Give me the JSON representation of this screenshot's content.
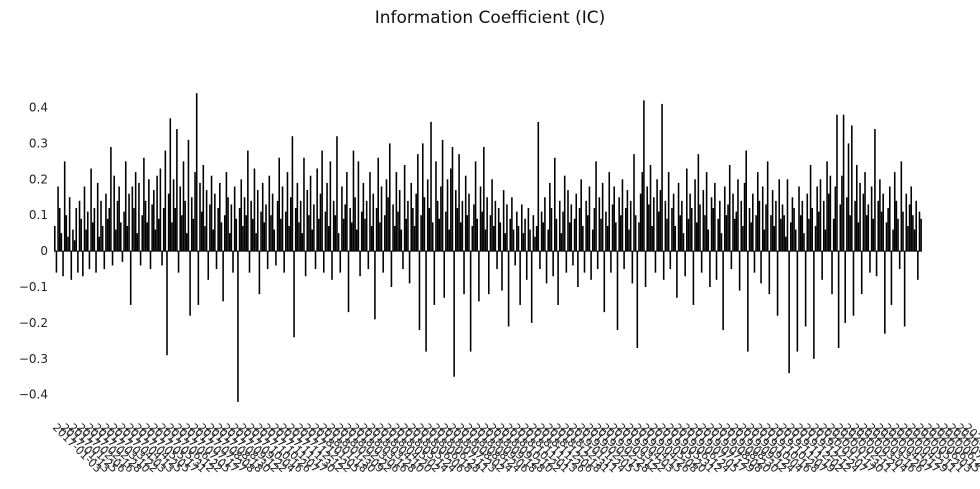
{
  "chart_data": {
    "type": "bar",
    "title": "Information Coefficient (IC)",
    "xlabel": "",
    "ylabel": "",
    "ylim": [
      -0.45,
      0.45
    ],
    "yticks": [
      0.4,
      0.3,
      0.2,
      0.1,
      0,
      -0.1,
      -0.2,
      -0.3,
      -0.4
    ],
    "ytick_labels": [
      "0.4",
      "0.3",
      "0.2",
      "0.1",
      "0",
      "−0.1",
      "−0.2",
      "−0.3",
      "−0.4"
    ],
    "bar_color": "#000000",
    "grid": false,
    "x_start": "2017-01-03",
    "x_end": "2020-07-24",
    "x_tick_labels": [
      "2017-01-03",
      "2017-01-13",
      "2017-01-25",
      "2017-02-06",
      "2017-02-16",
      "2017-02-28",
      "2017-03-10",
      "2017-03-22",
      "2017-04-03",
      "2017-04-13",
      "2017-04-25",
      "2017-05-05",
      "2017-05-17",
      "2017-05-31",
      "2017-06-12",
      "2017-06-22",
      "2017-07-05",
      "2017-07-17",
      "2017-07-27",
      "2017-08-08",
      "2017-08-18",
      "2017-08-30",
      "2017-09-12",
      "2017-09-22",
      "2017-10-04",
      "2017-10-16",
      "2017-10-26",
      "2017-11-07",
      "2017-11-17",
      "2017-11-30",
      "2017-12-12",
      "2017-12-22",
      "2018-01-05",
      "2018-01-18",
      "2018-01-30",
      "2018-02-09",
      "2018-02-22",
      "2018-03-06",
      "2018-03-16",
      "2018-03-28",
      "2018-04-10",
      "2018-04-20",
      "2018-05-02",
      "2018-05-14",
      "2018-05-24",
      "2018-06-06",
      "2018-06-18",
      "2018-06-28",
      "2018-07-11",
      "2018-07-23",
      "2018-08-02",
      "2018-08-14",
      "2018-08-24",
      "2018-09-06",
      "2018-09-18",
      "2018-09-28",
      "2018-10-10",
      "2018-10-22",
      "2018-11-01",
      "2018-11-13",
      "2018-11-26",
      "2018-12-06",
      "2018-12-18",
      "2018-12-31",
      "2019-01-11",
      "2019-01-24",
      "2019-02-05",
      "2019-02-15",
      "2019-02-28",
      "2019-03-12",
      "2019-03-22",
      "2019-04-03",
      "2019-04-15",
      "2019-04-26",
      "2019-05-08",
      "2019-05-20",
      "2019-05-31",
      "2019-06-12",
      "2019-06-24",
      "2019-07-05",
      "2019-07-17",
      "2019-07-29",
      "2019-08-08",
      "2019-08-20",
      "2019-08-30",
      "2019-09-12",
      "2019-09-24",
      "2019-10-04",
      "2019-10-16",
      "2019-10-28",
      "2019-11-07",
      "2019-11-19",
      "2019-12-02",
      "2019-12-12",
      "2019-12-24",
      "2020-01-07",
      "2020-01-17",
      "2020-01-30",
      "2020-02-11",
      "2020-02-21",
      "2020-03-04",
      "2020-03-16",
      "2020-03-26",
      "2020-04-07",
      "2020-04-17",
      "2020-04-29",
      "2020-05-11",
      "2020-05-21",
      "2020-06-03",
      "2020-06-15",
      "2020-06-25",
      "2020-07-08",
      "2020-07-20",
      "2020-07-24"
    ],
    "values": [
      0.07,
      -0.06,
      0.18,
      0.12,
      0.05,
      -0.07,
      0.25,
      0.1,
      0.04,
      0.15,
      -0.08,
      0.06,
      0.03,
      0.12,
      -0.06,
      0.14,
      0.09,
      -0.07,
      0.18,
      0.06,
      0.11,
      -0.05,
      0.23,
      0.08,
      0.12,
      -0.06,
      0.19,
      0.04,
      0.14,
      0.07,
      -0.05,
      0.16,
      0.09,
      0.12,
      0.29,
      -0.04,
      0.21,
      0.06,
      0.14,
      0.18,
      0.08,
      -0.03,
      0.11,
      0.25,
      0.07,
      0.16,
      -0.15,
      0.18,
      0.12,
      0.22,
      0.05,
      0.19,
      -0.04,
      0.1,
      0.26,
      0.14,
      0.08,
      0.2,
      -0.05,
      0.13,
      0.17,
      0.06,
      0.21,
      0.09,
      0.23,
      -0.04,
      0.12,
      0.28,
      -0.29,
      0.16,
      0.37,
      0.08,
      0.2,
      0.12,
      0.34,
      -0.06,
      0.18,
      0.1,
      0.25,
      0.14,
      0.05,
      0.31,
      -0.18,
      0.15,
      0.09,
      0.22,
      0.44,
      -0.15,
      0.19,
      0.11,
      0.24,
      0.07,
      0.17,
      -0.08,
      0.13,
      0.21,
      0.06,
      0.16,
      -0.05,
      0.12,
      0.19,
      0.08,
      -0.14,
      0.1,
      0.22,
      0.15,
      0.05,
      0.13,
      -0.06,
      0.18,
      0.09,
      -0.42,
      0.12,
      0.2,
      0.07,
      0.15,
      0.1,
      0.28,
      -0.06,
      0.14,
      0.09,
      0.23,
      0.05,
      0.17,
      -0.12,
      0.11,
      0.19,
      0.08,
      0.13,
      -0.05,
      0.21,
      0.1,
      0.16,
      0.06,
      -0.04,
      0.14,
      0.26,
      0.09,
      0.18,
      -0.06,
      0.11,
      0.22,
      0.07,
      0.15,
      0.32,
      -0.24,
      0.12,
      0.19,
      0.08,
      0.14,
      0.05,
      0.26,
      -0.07,
      0.17,
      0.1,
      0.21,
      0.06,
      0.13,
      -0.05,
      0.23,
      0.09,
      0.16,
      0.28,
      -0.06,
      0.11,
      0.19,
      0.07,
      0.25,
      -0.08,
      0.14,
      0.1,
      0.32,
      0.05,
      -0.06,
      0.18,
      0.09,
      0.13,
      0.22,
      -0.17,
      0.12,
      0.08,
      0.28,
      0.15,
      0.06,
      0.25,
      -0.07,
      0.11,
      0.19,
      0.09,
      0.14,
      -0.05,
      0.22,
      0.07,
      0.16,
      -0.19,
      0.12,
      0.26,
      0.08,
      0.18,
      -0.06,
      0.1,
      0.2,
      0.15,
      0.3,
      -0.1,
      0.13,
      0.07,
      0.22,
      0.11,
      0.17,
      0.06,
      -0.05,
      0.24,
      0.09,
      0.14,
      -0.09,
      0.19,
      0.12,
      0.07,
      0.16,
      0.27,
      -0.22,
      0.1,
      0.3,
      0.15,
      -0.28,
      0.2,
      0.12,
      0.36,
      0.08,
      -0.15,
      0.25,
      0.14,
      0.09,
      0.18,
      0.31,
      -0.13,
      0.11,
      0.2,
      0.06,
      0.23,
      0.29,
      -0.35,
      0.17,
      0.12,
      0.27,
      0.08,
      0.14,
      -0.12,
      0.21,
      0.1,
      0.16,
      -0.28,
      0.07,
      0.13,
      0.25,
      0.09,
      -0.14,
      0.18,
      0.11,
      0.29,
      0.06,
      0.15,
      -0.12,
      0.1,
      0.2,
      0.07,
      0.14,
      -0.05,
      0.12,
      0.08,
      -0.11,
      0.17,
      0.05,
      0.13,
      -0.21,
      0.09,
      0.15,
      0.06,
      -0.04,
      0.11,
      0.07,
      -0.15,
      0.13,
      0.05,
      0.09,
      -0.08,
      0.12,
      0.06,
      -0.2,
      0.1,
      0.04,
      0.07,
      0.36,
      -0.05,
      0.11,
      0.08,
      0.15,
      -0.09,
      0.06,
      0.19,
      0.12,
      -0.07,
      0.26,
      0.09,
      -0.15,
      0.14,
      0.05,
      0.11,
      0.21,
      -0.06,
      0.17,
      0.08,
      0.13,
      -0.04,
      0.09,
      0.16,
      -0.1,
      0.12,
      0.2,
      0.07,
      -0.06,
      0.14,
      0.1,
      0.18,
      -0.08,
      0.06,
      0.12,
      0.25,
      -0.05,
      0.15,
      0.09,
      0.19,
      -0.17,
      0.11,
      0.07,
      0.22,
      -0.06,
      0.13,
      0.18,
      0.08,
      -0.22,
      0.15,
      0.1,
      0.2,
      -0.05,
      0.12,
      0.17,
      0.06,
      0.14,
      -0.09,
      0.27,
      0.1,
      -0.27,
      0.08,
      0.16,
      0.22,
      0.42,
      -0.1,
      0.18,
      0.13,
      0.24,
      0.07,
      0.15,
      -0.06,
      0.2,
      0.11,
      0.17,
      0.41,
      -0.08,
      0.14,
      0.09,
      0.22,
      -0.05,
      0.12,
      0.16,
      0.07,
      -0.13,
      0.19,
      0.1,
      0.14,
      0.05,
      -0.07,
      0.23,
      0.09,
      0.16,
      0.12,
      -0.15,
      0.2,
      0.08,
      0.27,
      0.13,
      -0.06,
      0.17,
      0.1,
      0.22,
      0.06,
      -0.1,
      0.15,
      0.12,
      0.19,
      -0.08,
      0.09,
      0.14,
      0.05,
      -0.22,
      0.18,
      0.1,
      0.13,
      0.24,
      -0.05,
      0.16,
      0.09,
      0.11,
      0.2,
      -0.11,
      0.14,
      0.07,
      0.19,
      0.28,
      -0.28,
      0.12,
      0.08,
      0.16,
      -0.06,
      0.1,
      0.22,
      0.14,
      -0.09,
      0.18,
      0.06,
      0.13,
      0.25,
      -0.12,
      0.1,
      0.17,
      0.07,
      0.14,
      -0.18,
      0.2,
      0.09,
      0.13,
      0.1,
      0.04,
      0.2,
      -0.34,
      0.08,
      0.15,
      0.12,
      0.06,
      -0.28,
      0.18,
      0.1,
      0.14,
      0.05,
      -0.21,
      0.16,
      0.09,
      0.24,
      0.12,
      -0.3,
      0.07,
      0.18,
      0.11,
      0.2,
      -0.08,
      0.14,
      0.06,
      0.25,
      0.16,
      0.21,
      -0.12,
      0.09,
      0.18,
      0.38,
      -0.27,
      0.13,
      0.21,
      0.38,
      -0.2,
      0.15,
      0.3,
      0.1,
      0.35,
      -0.18,
      0.14,
      0.24,
      0.08,
      0.19,
      -0.12,
      0.16,
      0.22,
      0.1,
      0.13,
      -0.06,
      0.18,
      0.09,
      0.34,
      -0.07,
      0.14,
      0.2,
      0.11,
      0.16,
      -0.23,
      0.08,
      0.12,
      0.18,
      -0.15,
      0.06,
      0.22,
      0.14,
      0.09,
      -0.05,
      0.25,
      0.11,
      -0.21,
      0.16,
      0.07,
      0.13,
      0.18,
      0.1,
      0.06,
      0.14,
      -0.08,
      0.11,
      0.09
    ]
  }
}
